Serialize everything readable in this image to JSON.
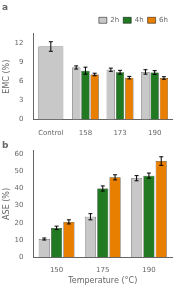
{
  "chart_data": [
    {
      "type": "bar",
      "title": "a",
      "categories": [
        "Control",
        "158",
        "173",
        "190"
      ],
      "series": [
        {
          "name": "2h",
          "color": "#c8c8c8",
          "values": [
            11.5,
            8.2,
            7.85,
            7.5
          ],
          "errors": [
            0.75,
            0.25,
            0.25,
            0.35
          ]
        },
        {
          "name": "4h",
          "color": "#217a21",
          "values": [
            null,
            7.7,
            7.45,
            7.4
          ],
          "errors": [
            null,
            0.55,
            0.3,
            0.3
          ]
        },
        {
          "name": "6h",
          "color": "#e87f00",
          "values": [
            null,
            7.1,
            6.6,
            6.55
          ],
          "errors": [
            null,
            0.2,
            0.2,
            0.2
          ]
        }
      ],
      "ylabel": "EMC (%)",
      "ylim": [
        0,
        13.5
      ],
      "yticks": [
        0,
        3,
        6,
        9,
        12
      ],
      "grid": false,
      "legend": "upper right"
    },
    {
      "type": "bar",
      "title": "b",
      "categories": [
        "150",
        "175",
        "190"
      ],
      "series": [
        {
          "name": "2h",
          "color": "#c8c8c8",
          "values": [
            10.5,
            23.5,
            46.0
          ],
          "errors": [
            0.6,
            1.8,
            1.5
          ]
        },
        {
          "name": "4h",
          "color": "#217a21",
          "values": [
            17.0,
            40.0,
            47.5
          ],
          "errors": [
            1.0,
            1.5,
            1.5
          ]
        },
        {
          "name": "6h",
          "color": "#e87f00",
          "values": [
            20.5,
            46.5,
            56.0
          ],
          "errors": [
            1.2,
            1.5,
            2.5
          ]
        }
      ],
      "xlabel": "Temperature (°C)",
      "ylabel": "ASE (%)",
      "ylim": [
        0,
        62
      ],
      "yticks": [
        0,
        10,
        20,
        30,
        40,
        50,
        60
      ],
      "grid": false
    }
  ]
}
